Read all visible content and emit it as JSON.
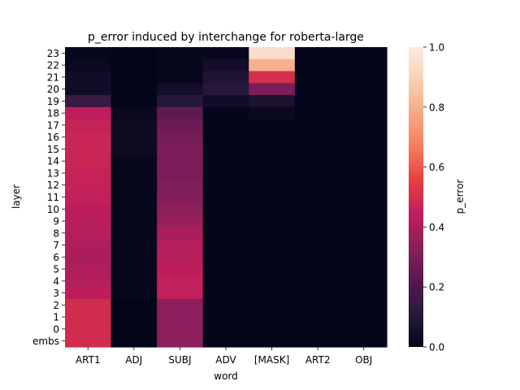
{
  "chart_data": {
    "type": "heatmap",
    "title": "p_error induced by interchange for roberta-large",
    "xlabel": "word",
    "ylabel": "layer",
    "x_categories": [
      "ART1",
      "ADJ",
      "SUBJ",
      "ADV",
      "[MASK]",
      "ART2",
      "OBJ"
    ],
    "y_categories": [
      "23",
      "22",
      "21",
      "20",
      "19",
      "18",
      "17",
      "16",
      "15",
      "14",
      "13",
      "12",
      "11",
      "10",
      "9",
      "8",
      "7",
      "6",
      "5",
      "4",
      "3",
      "2",
      "1",
      "0",
      "embs"
    ],
    "values": [
      [
        0.01,
        0.0,
        0.01,
        0.01,
        0.95,
        0.0,
        0.0
      ],
      [
        0.02,
        0.0,
        0.01,
        0.05,
        0.8,
        0.0,
        0.0
      ],
      [
        0.04,
        0.0,
        0.01,
        0.08,
        0.5,
        0.0,
        0.0
      ],
      [
        0.04,
        0.0,
        0.05,
        0.1,
        0.3,
        0.0,
        0.0
      ],
      [
        0.15,
        0.0,
        0.1,
        0.04,
        0.07,
        0.0,
        0.0
      ],
      [
        0.44,
        0.02,
        0.24,
        0.0,
        0.02,
        0.0,
        0.0
      ],
      [
        0.46,
        0.03,
        0.27,
        0.0,
        0.0,
        0.0,
        0.0
      ],
      [
        0.47,
        0.03,
        0.29,
        0.0,
        0.0,
        0.0,
        0.0
      ],
      [
        0.47,
        0.03,
        0.3,
        0.0,
        0.0,
        0.0,
        0.0
      ],
      [
        0.47,
        0.01,
        0.3,
        0.0,
        0.0,
        0.0,
        0.0
      ],
      [
        0.46,
        0.01,
        0.3,
        0.0,
        0.0,
        0.0,
        0.0
      ],
      [
        0.46,
        0.01,
        0.31,
        0.0,
        0.0,
        0.0,
        0.0
      ],
      [
        0.45,
        0.01,
        0.32,
        0.0,
        0.0,
        0.0,
        0.0
      ],
      [
        0.44,
        0.01,
        0.34,
        0.0,
        0.0,
        0.0,
        0.0
      ],
      [
        0.43,
        0.01,
        0.36,
        0.0,
        0.0,
        0.0,
        0.0
      ],
      [
        0.42,
        0.01,
        0.4,
        0.0,
        0.0,
        0.0,
        0.0
      ],
      [
        0.41,
        0.01,
        0.42,
        0.0,
        0.0,
        0.0,
        0.0
      ],
      [
        0.4,
        0.01,
        0.43,
        0.0,
        0.0,
        0.0,
        0.0
      ],
      [
        0.41,
        0.01,
        0.44,
        0.0,
        0.0,
        0.0,
        0.0
      ],
      [
        0.42,
        0.01,
        0.45,
        0.0,
        0.0,
        0.0,
        0.0
      ],
      [
        0.44,
        0.01,
        0.45,
        0.0,
        0.0,
        0.0,
        0.0
      ],
      [
        0.49,
        0.0,
        0.34,
        0.0,
        0.0,
        0.0,
        0.0
      ],
      [
        0.49,
        0.0,
        0.34,
        0.0,
        0.0,
        0.0,
        0.0
      ],
      [
        0.49,
        0.0,
        0.34,
        0.0,
        0.0,
        0.0,
        0.0
      ],
      [
        0.49,
        0.0,
        0.34,
        0.0,
        0.0,
        0.0,
        0.0
      ]
    ],
    "colorbar": {
      "label": "p_error",
      "range": [
        0.0,
        1.0
      ],
      "ticks": [
        0.0,
        0.2,
        0.4,
        0.6,
        0.8,
        1.0
      ],
      "tick_labels": [
        "0.0",
        "0.2",
        "0.4",
        "0.6",
        "0.8",
        "1.0"
      ],
      "colormap": "rocket",
      "colormap_stops": [
        "#03051a",
        "#2a1a3d",
        "#57184f",
        "#8a1f5c",
        "#bf1e5b",
        "#e83f3f",
        "#f47c5c",
        "#f6a885",
        "#f9cfb5",
        "#faebdd"
      ]
    },
    "grid": false
  }
}
